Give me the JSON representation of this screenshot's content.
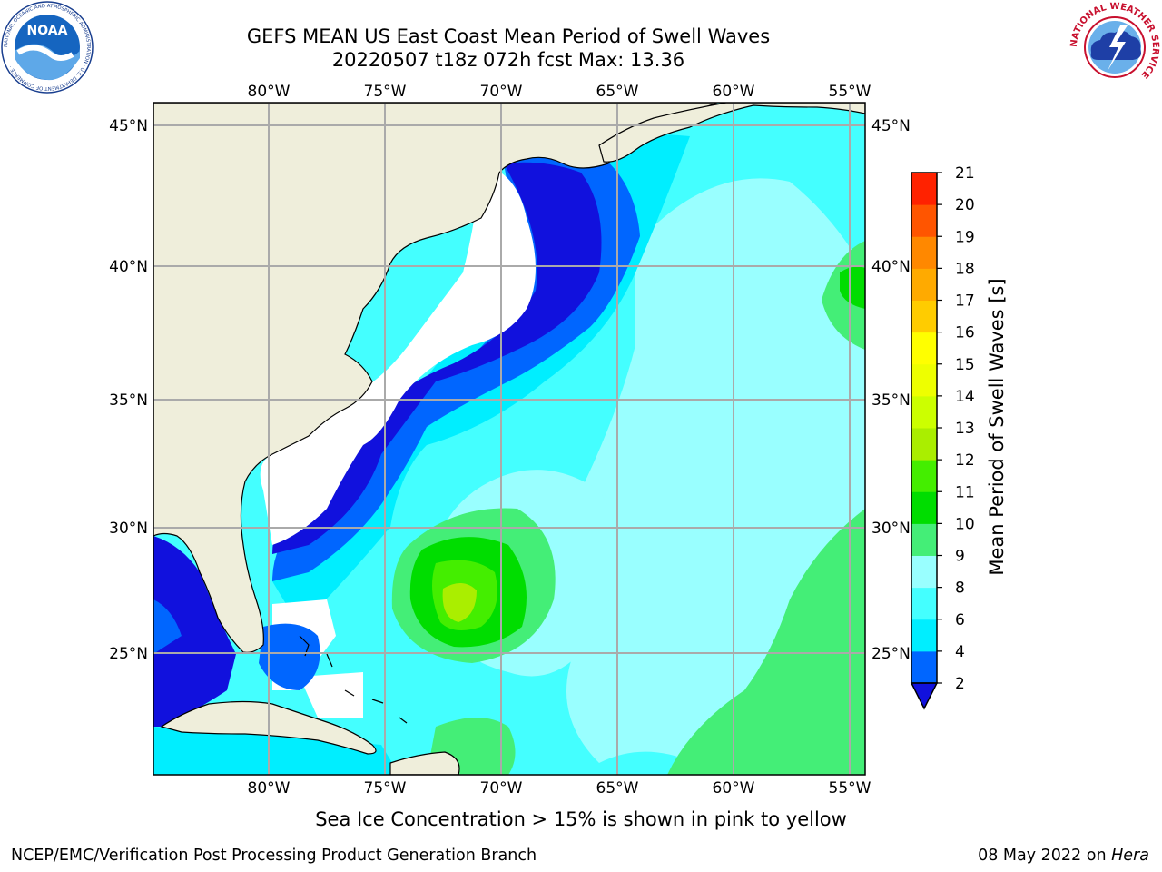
{
  "header": {
    "title_line1": "GEFS MEAN US East Coast Mean Period of Swell Waves",
    "title_line2": "20220507 t18z 072h fcst   Max: 13.36",
    "logo_left": "NOAA",
    "logo_right_ring": "NATIONAL WEATHER SERVICE"
  },
  "map": {
    "longitude_labels": [
      "80°W",
      "75°W",
      "70°W",
      "65°W",
      "60°W",
      "55°W"
    ],
    "latitude_labels": [
      "45°N",
      "40°N",
      "35°N",
      "30°N",
      "25°N"
    ],
    "colors": {
      "land": "#efeedb",
      "gridline": "#aaaaaa",
      "coast": "#000000",
      "masked": "#ffffff"
    }
  },
  "colorbar": {
    "label": "Mean Period of Swell Waves [s]",
    "tick_labels": [
      "2",
      "4",
      "6",
      "8",
      "9",
      "10",
      "11",
      "12",
      "13",
      "14",
      "15",
      "16",
      "17",
      "18",
      "19",
      "20",
      "21"
    ],
    "colors": [
      "#0066ff",
      "#00eeff",
      "#44ffff",
      "#99ffff",
      "#44ee77",
      "#00dd00",
      "#44ee00",
      "#aaee00",
      "#ccff00",
      "#eeff00",
      "#ffff00",
      "#ffcc00",
      "#ffaa00",
      "#ff8800",
      "#ff5500",
      "#ff2200"
    ],
    "under_color": "#1111dd"
  },
  "caption": "Sea Ice Concentration > 15% is shown in pink to yellow",
  "footer": {
    "left": "NCEP/EMC/Verification Post Processing Product Generation Branch",
    "right_date": "08 May 2022 on",
    "right_host": "Hera"
  }
}
